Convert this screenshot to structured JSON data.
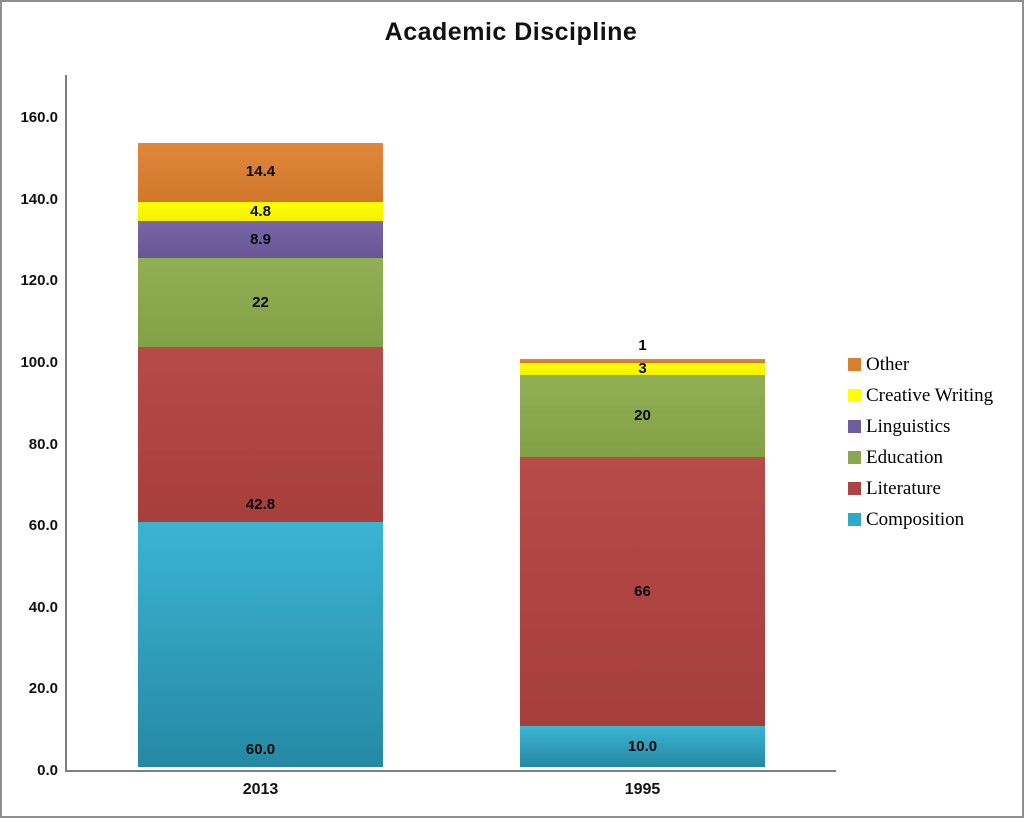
{
  "title": "Academic Discipline",
  "chart_data": {
    "type": "bar",
    "stacked": true,
    "title": "Academic Discipline",
    "xlabel": "",
    "ylabel": "",
    "ylim": [
      0,
      160
    ],
    "grid": false,
    "legend_position": "right",
    "categories": [
      "2013",
      "1995"
    ],
    "y_ticks": [
      {
        "value": 0,
        "label": "0.0"
      },
      {
        "value": 20,
        "label": "20.0"
      },
      {
        "value": 40,
        "label": "40.0"
      },
      {
        "value": 60,
        "label": "60.0"
      },
      {
        "value": 80,
        "label": "80.0"
      },
      {
        "value": 100,
        "label": "100.0"
      },
      {
        "value": 120,
        "label": "120.0"
      },
      {
        "value": 140,
        "label": "140.0"
      },
      {
        "value": 160,
        "label": "160.0"
      }
    ],
    "series": [
      {
        "name": "Composition",
        "color": "#2EA9C9",
        "color_top": "#3BB4D4",
        "color_bottom": "#2589A3",
        "values": [
          60,
          10
        ],
        "labels": [
          "60.0",
          "10.0"
        ],
        "label_pos": [
          "base",
          "center"
        ]
      },
      {
        "name": "Literature",
        "color": "#AC4542",
        "color_top": "#B64B48",
        "color_bottom": "#A63E3C",
        "values": [
          42.8,
          66
        ],
        "labels": [
          "42.8",
          "66"
        ],
        "label_pos": [
          "base",
          "center"
        ]
      },
      {
        "name": "Education",
        "color": "#8BA84E",
        "color_top": "#91AF55",
        "color_bottom": "#82A046",
        "values": [
          22,
          20
        ],
        "labels": [
          "22",
          "20"
        ],
        "label_pos": [
          "center",
          "center"
        ]
      },
      {
        "name": "Linguistics",
        "color": "#6F5C9C",
        "color_top": "#7866A7",
        "color_bottom": "#685596",
        "values": [
          8.9,
          0
        ],
        "labels": [
          "8.9",
          ""
        ],
        "label_pos": [
          "center",
          "center"
        ]
      },
      {
        "name": "Creative Writing",
        "color": "#FFFF00",
        "color_top": "#FFFF00",
        "color_bottom": "#F5F000",
        "values": [
          4.8,
          3
        ],
        "labels": [
          "4.8",
          "3"
        ],
        "label_pos": [
          "center",
          "center"
        ]
      },
      {
        "name": "Other",
        "color": "#D8802F",
        "color_top": "#E0873C",
        "color_bottom": "#D0772A",
        "values": [
          14.4,
          1
        ],
        "labels": [
          "14.4",
          "1"
        ],
        "label_pos": [
          "center",
          "above"
        ]
      }
    ]
  }
}
